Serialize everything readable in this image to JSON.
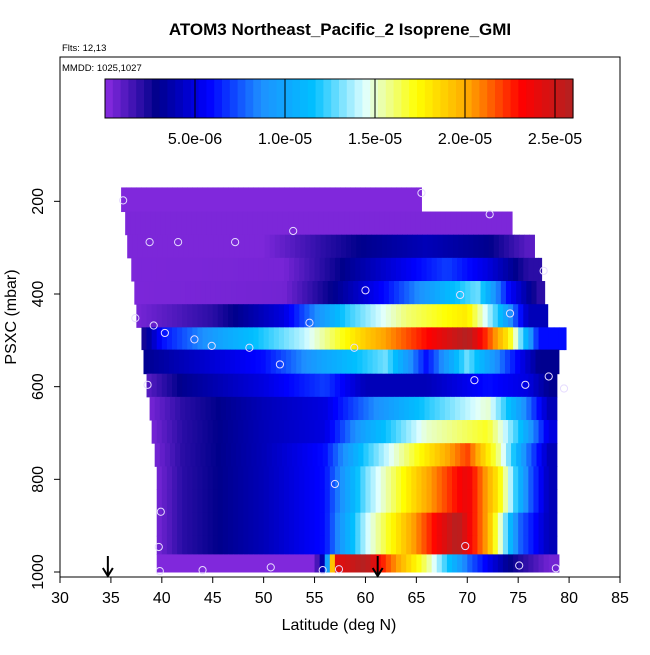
{
  "chart_data": {
    "type": "heatmap",
    "title": "ATOM3 Northeast_Pacific_2 Isoprene_GMI",
    "subtitle_lines": [
      "Flts: 12,13",
      "MMDD: 1025,1027"
    ],
    "xlabel": "Latitude (deg N)",
    "ylabel": "PSXC (mbar)",
    "xlim": [
      30,
      85
    ],
    "ylim": [
      1000,
      100
    ],
    "y_reversed": true,
    "grid": false,
    "x_ticks": [
      "30",
      "35",
      "40",
      "45",
      "50",
      "55",
      "60",
      "65",
      "70",
      "75",
      "80",
      "85"
    ],
    "y_ticks": [
      "200",
      "400",
      "600",
      "800",
      "1000"
    ],
    "colorbar": {
      "min": 0,
      "max": 2.6e-05,
      "ticks": [
        "5.0e-06",
        "1.0e-05",
        "1.5e-05",
        "2.0e-05",
        "2.5e-05"
      ],
      "tick_values": [
        5e-06,
        1e-05,
        1.5e-05,
        2e-05,
        2.5e-05
      ],
      "colors": [
        "#8a2be2",
        "#00008b",
        "#0000ff",
        "#1e90ff",
        "#00bfff",
        "#e0ffff",
        "#ffff00",
        "#ffa500",
        "#ff0000",
        "#b22222"
      ]
    },
    "vertical_bands": [
      {
        "top": 170,
        "bottom": 222,
        "x_start": 36,
        "x_end": 65.5,
        "value": 2e-07,
        "profile": []
      },
      {
        "top": 222,
        "bottom": 272,
        "x_start": 36.4,
        "x_end": 74.4,
        "value": 3e-07,
        "profile": []
      },
      {
        "top": 272,
        "bottom": 322,
        "x_start": 36.6,
        "x_end": 76.6,
        "value": 3e-07,
        "profile": [
          {
            "x": 50,
            "v": 3e-07
          },
          {
            "x": 56,
            "v": 2e-06
          },
          {
            "x": 60,
            "v": 3e-06
          },
          {
            "x": 66,
            "v": 4e-06
          },
          {
            "x": 72,
            "v": 3e-06
          },
          {
            "x": 76,
            "v": 1e-06
          }
        ]
      },
      {
        "top": 322,
        "bottom": 372,
        "x_start": 37,
        "x_end": 77.3,
        "value": 3e-07,
        "profile": [
          {
            "x": 52,
            "v": 4e-07
          },
          {
            "x": 58,
            "v": 3e-06
          },
          {
            "x": 63,
            "v": 5e-06
          },
          {
            "x": 68,
            "v": 7e-06
          },
          {
            "x": 72,
            "v": 5e-06
          },
          {
            "x": 76,
            "v": 2e-06
          }
        ]
      },
      {
        "top": 372,
        "bottom": 422,
        "x_start": 37.3,
        "x_end": 77.6,
        "value": 3e-07,
        "profile": [
          {
            "x": 52,
            "v": 5e-07
          },
          {
            "x": 57,
            "v": 3e-06
          },
          {
            "x": 62,
            "v": 6e-06
          },
          {
            "x": 68,
            "v": 1.1e-05
          },
          {
            "x": 71,
            "v": 1.3e-05
          },
          {
            "x": 74,
            "v": 6e-06
          },
          {
            "x": 77,
            "v": 2e-06
          }
        ]
      },
      {
        "top": 422,
        "bottom": 472,
        "x_start": 37.5,
        "x_end": 77.9,
        "value": 4e-07,
        "profile": [
          {
            "x": 45,
            "v": 2e-06
          },
          {
            "x": 52,
            "v": 5e-06
          },
          {
            "x": 58,
            "v": 1.2e-05
          },
          {
            "x": 64,
            "v": 1.6e-05
          },
          {
            "x": 70,
            "v": 1.8e-05
          },
          {
            "x": 73,
            "v": 1.2e-05
          },
          {
            "x": 76,
            "v": 4e-06
          }
        ]
      },
      {
        "top": 472,
        "bottom": 520,
        "x_start": 38,
        "x_end": 79.7,
        "value": 2e-06,
        "profile": [
          {
            "x": 40,
            "v": 6e-06
          },
          {
            "x": 46,
            "v": 1e-05
          },
          {
            "x": 54,
            "v": 1.4e-05
          },
          {
            "x": 60,
            "v": 1.9e-05
          },
          {
            "x": 66,
            "v": 2.3e-05
          },
          {
            "x": 70,
            "v": 2.6e-05
          },
          {
            "x": 74,
            "v": 1.8e-05
          },
          {
            "x": 77,
            "v": 6e-06
          }
        ]
      },
      {
        "top": 520,
        "bottom": 572,
        "x_start": 38.2,
        "x_end": 79,
        "value": 3e-06,
        "profile": [
          {
            "x": 42,
            "v": 4e-06
          },
          {
            "x": 50,
            "v": 6e-06
          },
          {
            "x": 56,
            "v": 1e-05
          },
          {
            "x": 62,
            "v": 1.3e-05
          },
          {
            "x": 66,
            "v": 6e-06
          },
          {
            "x": 70,
            "v": 1.3e-05
          },
          {
            "x": 74,
            "v": 7e-06
          },
          {
            "x": 77,
            "v": 3e-06
          }
        ]
      },
      {
        "top": 572,
        "bottom": 622,
        "x_start": 38.5,
        "x_end": 78.8,
        "value": 1e-06,
        "profile": [
          {
            "x": 42,
            "v": 3e-06
          },
          {
            "x": 50,
            "v": 5e-06
          },
          {
            "x": 56,
            "v": 7e-06
          },
          {
            "x": 60,
            "v": 4e-06
          },
          {
            "x": 66,
            "v": 4e-06
          },
          {
            "x": 72,
            "v": 6e-06
          },
          {
            "x": 76,
            "v": 5e-06
          },
          {
            "x": 78,
            "v": 3e-06
          }
        ]
      },
      {
        "top": 622,
        "bottom": 672,
        "x_start": 38.8,
        "x_end": 78.8,
        "value": 4e-07,
        "profile": [
          {
            "x": 42,
            "v": 2e-06
          },
          {
            "x": 50,
            "v": 4e-06
          },
          {
            "x": 56,
            "v": 5e-06
          },
          {
            "x": 60,
            "v": 8e-06
          },
          {
            "x": 66,
            "v": 1.2e-05
          },
          {
            "x": 72,
            "v": 1.5e-05
          },
          {
            "x": 75,
            "v": 1e-05
          },
          {
            "x": 78,
            "v": 4e-06
          }
        ]
      },
      {
        "top": 672,
        "bottom": 722,
        "x_start": 39,
        "x_end": 78.8,
        "value": 4e-07,
        "profile": [
          {
            "x": 42,
            "v": 2e-06
          },
          {
            "x": 50,
            "v": 4e-06
          },
          {
            "x": 56,
            "v": 5e-06
          },
          {
            "x": 60,
            "v": 1e-05
          },
          {
            "x": 66,
            "v": 1.5e-05
          },
          {
            "x": 72,
            "v": 1.7e-05
          },
          {
            "x": 75,
            "v": 1.2e-05
          },
          {
            "x": 78,
            "v": 5e-06
          }
        ]
      },
      {
        "top": 722,
        "bottom": 772,
        "x_start": 39.3,
        "x_end": 78.8,
        "value": 4e-07,
        "profile": [
          {
            "x": 42,
            "v": 2e-06
          },
          {
            "x": 50,
            "v": 4e-06
          },
          {
            "x": 56,
            "v": 6e-06
          },
          {
            "x": 60,
            "v": 1.2e-05
          },
          {
            "x": 66,
            "v": 1.8e-05
          },
          {
            "x": 70,
            "v": 2.2e-05
          },
          {
            "x": 73,
            "v": 1.6e-05
          },
          {
            "x": 76,
            "v": 8e-06
          },
          {
            "x": 78,
            "v": 4e-06
          }
        ]
      },
      {
        "top": 772,
        "bottom": 822,
        "x_start": 39.5,
        "x_end": 78.8,
        "value": 4e-07,
        "profile": [
          {
            "x": 42,
            "v": 2e-06
          },
          {
            "x": 50,
            "v": 4e-06
          },
          {
            "x": 56,
            "v": 6e-06
          },
          {
            "x": 60,
            "v": 1.3e-05
          },
          {
            "x": 66,
            "v": 2e-05
          },
          {
            "x": 70,
            "v": 2.4e-05
          },
          {
            "x": 73,
            "v": 1.8e-05
          },
          {
            "x": 76,
            "v": 8e-06
          },
          {
            "x": 78,
            "v": 4e-06
          }
        ]
      },
      {
        "top": 822,
        "bottom": 872,
        "x_start": 39.5,
        "x_end": 78.8,
        "value": 4e-07,
        "profile": [
          {
            "x": 42,
            "v": 2e-06
          },
          {
            "x": 50,
            "v": 4e-06
          },
          {
            "x": 56,
            "v": 6e-06
          },
          {
            "x": 60,
            "v": 1.3e-05
          },
          {
            "x": 66,
            "v": 2e-05
          },
          {
            "x": 70,
            "v": 2.4e-05
          },
          {
            "x": 73,
            "v": 1.8e-05
          },
          {
            "x": 76,
            "v": 8e-06
          },
          {
            "x": 78,
            "v": 4e-06
          }
        ]
      },
      {
        "top": 872,
        "bottom": 922,
        "x_start": 39.5,
        "x_end": 78.8,
        "value": 4e-07,
        "profile": [
          {
            "x": 42,
            "v": 2e-06
          },
          {
            "x": 50,
            "v": 4e-06
          },
          {
            "x": 56,
            "v": 6e-06
          },
          {
            "x": 60,
            "v": 1.4e-05
          },
          {
            "x": 66,
            "v": 2.2e-05
          },
          {
            "x": 69,
            "v": 2.6e-05
          },
          {
            "x": 72,
            "v": 2e-05
          },
          {
            "x": 75,
            "v": 8e-06
          },
          {
            "x": 78,
            "v": 4e-06
          }
        ]
      },
      {
        "top": 922,
        "bottom": 962,
        "x_start": 39.5,
        "x_end": 78.8,
        "value": 4e-07,
        "profile": [
          {
            "x": 42,
            "v": 2e-06
          },
          {
            "x": 50,
            "v": 4e-06
          },
          {
            "x": 56,
            "v": 6e-06
          },
          {
            "x": 60,
            "v": 1.4e-05
          },
          {
            "x": 66,
            "v": 2.2e-05
          },
          {
            "x": 69,
            "v": 2.6e-05
          },
          {
            "x": 72,
            "v": 2e-05
          },
          {
            "x": 75,
            "v": 8e-06
          },
          {
            "x": 78,
            "v": 4e-06
          }
        ]
      },
      {
        "top": 962,
        "bottom": 1000,
        "x_start": 39.5,
        "x_end": 79,
        "value": 2e-07,
        "profile": [
          {
            "x": 55,
            "v": 2e-07
          },
          {
            "x": 56,
            "v": 5e-06
          },
          {
            "x": 57,
            "v": 2.4e-05
          },
          {
            "x": 60,
            "v": 2.6e-05
          },
          {
            "x": 62,
            "v": 2.2e-05
          },
          {
            "x": 66,
            "v": 1.6e-05
          },
          {
            "x": 70,
            "v": 8e-06
          },
          {
            "x": 74,
            "v": 3e-06
          },
          {
            "x": 78,
            "v": 5e-07
          }
        ]
      }
    ],
    "observations": [
      {
        "x": 36.2,
        "y": 198
      },
      {
        "x": 65.5,
        "y": 182
      },
      {
        "x": 72.2,
        "y": 228
      },
      {
        "x": 38.8,
        "y": 288
      },
      {
        "x": 41.6,
        "y": 288
      },
      {
        "x": 47.2,
        "y": 288
      },
      {
        "x": 52.9,
        "y": 264
      },
      {
        "x": 77.5,
        "y": 350
      },
      {
        "x": 60,
        "y": 392
      },
      {
        "x": 69.3,
        "y": 402
      },
      {
        "x": 74.2,
        "y": 442
      },
      {
        "x": 37.4,
        "y": 452
      },
      {
        "x": 39.2,
        "y": 468
      },
      {
        "x": 40.3,
        "y": 484
      },
      {
        "x": 43.2,
        "y": 498
      },
      {
        "x": 44.9,
        "y": 512
      },
      {
        "x": 48.6,
        "y": 516
      },
      {
        "x": 54.5,
        "y": 462
      },
      {
        "x": 58.9,
        "y": 516
      },
      {
        "x": 51.6,
        "y": 552
      },
      {
        "x": 38.6,
        "y": 596
      },
      {
        "x": 70.7,
        "y": 586
      },
      {
        "x": 75.7,
        "y": 596
      },
      {
        "x": 78,
        "y": 578
      },
      {
        "x": 79.5,
        "y": 604
      },
      {
        "x": 57,
        "y": 810
      },
      {
        "x": 39.9,
        "y": 870
      },
      {
        "x": 69.8,
        "y": 944
      },
      {
        "x": 39.7,
        "y": 946
      },
      {
        "x": 50.7,
        "y": 990
      },
      {
        "x": 44,
        "y": 996
      },
      {
        "x": 39.8,
        "y": 998
      },
      {
        "x": 55.8,
        "y": 996
      },
      {
        "x": 57.4,
        "y": 994
      },
      {
        "x": 75.1,
        "y": 986
      },
      {
        "x": 78.7,
        "y": 992
      }
    ],
    "arrows": [
      {
        "x": 34.7
      },
      {
        "x": 61.2
      }
    ]
  }
}
